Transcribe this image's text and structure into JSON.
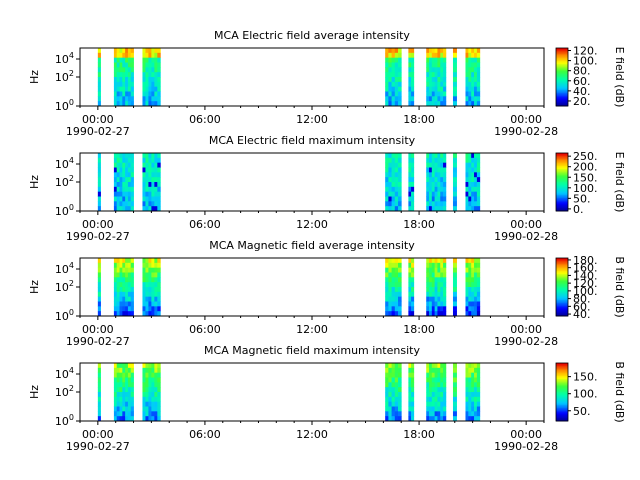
{
  "figure": {
    "background": "#ffffff"
  },
  "chart_data": [
    {
      "type": "heatmap",
      "title": "MCA  Electric field average intensity",
      "ylabel": "Hz",
      "y_scale": "log",
      "y_ticks": [
        "10^0",
        "10^2",
        "10^4"
      ],
      "x_ticks": [
        "00:00",
        "06:00",
        "12:00",
        "18:00",
        "00:00"
      ],
      "x_dates": [
        "1990-02-27",
        "",
        "",
        "",
        "1990-02-28"
      ],
      "colorbar_label": "E field (dB)",
      "colorbar_ticks": [
        "120.",
        "100.",
        "80.",
        "60.",
        "40.",
        "20."
      ],
      "colorbar_range": [
        10,
        125
      ],
      "data_intervals_hours": [
        [
          0.0,
          0.15
        ],
        [
          0.9,
          2.0
        ],
        [
          2.5,
          3.5
        ],
        [
          16.1,
          17.0
        ],
        [
          17.4,
          17.7
        ],
        [
          18.4,
          19.5
        ],
        [
          19.9,
          20.1
        ],
        [
          20.6,
          21.4
        ]
      ]
    },
    {
      "type": "heatmap",
      "title": "MCA  Electric field maximum intensity",
      "ylabel": "Hz",
      "y_scale": "log",
      "y_ticks": [
        "10^0",
        "10^2",
        "10^4"
      ],
      "x_ticks": [
        "00:00",
        "06:00",
        "12:00",
        "18:00",
        "00:00"
      ],
      "x_dates": [
        "1990-02-27",
        "",
        "",
        "",
        "1990-02-28"
      ],
      "colorbar_label": "E field (dB)",
      "colorbar_ticks": [
        "250.",
        "200.",
        "150.",
        "100.",
        "50.",
        "0."
      ],
      "colorbar_range": [
        -10,
        265
      ],
      "data_intervals_hours": [
        [
          0.0,
          0.15
        ],
        [
          0.9,
          2.0
        ],
        [
          2.5,
          3.5
        ],
        [
          16.1,
          17.0
        ],
        [
          17.4,
          17.7
        ],
        [
          18.4,
          19.5
        ],
        [
          19.9,
          20.1
        ],
        [
          20.6,
          21.4
        ]
      ]
    },
    {
      "type": "heatmap",
      "title": "MCA  Magnetic field average intensity",
      "ylabel": "Hz",
      "y_scale": "log",
      "y_ticks": [
        "10^0",
        "10^2",
        "10^4"
      ],
      "x_ticks": [
        "00:00",
        "06:00",
        "12:00",
        "18:00",
        "00:00"
      ],
      "x_dates": [
        "1990-02-27",
        "",
        "",
        "",
        "1990-02-28"
      ],
      "colorbar_label": "B field (dB)",
      "colorbar_ticks": [
        "180.",
        "160.",
        "140.",
        "120.",
        "100.",
        "80.",
        "60.",
        "40."
      ],
      "colorbar_range": [
        35,
        185
      ],
      "data_intervals_hours": [
        [
          0.0,
          0.15
        ],
        [
          0.9,
          2.0
        ],
        [
          2.5,
          3.5
        ],
        [
          16.1,
          17.0
        ],
        [
          17.4,
          17.7
        ],
        [
          18.4,
          19.5
        ],
        [
          19.9,
          20.1
        ],
        [
          20.6,
          21.4
        ]
      ]
    },
    {
      "type": "heatmap",
      "title": "MCA  Magnetic field maximum intensity",
      "ylabel": "Hz",
      "y_scale": "log",
      "y_ticks": [
        "10^0",
        "10^2",
        "10^4"
      ],
      "x_ticks": [
        "00:00",
        "06:00",
        "12:00",
        "18:00",
        "00:00"
      ],
      "x_dates": [
        "1990-02-27",
        "",
        "",
        "",
        "1990-02-28"
      ],
      "colorbar_label": "B field (dB)",
      "colorbar_ticks": [
        "150.",
        "100.",
        "50."
      ],
      "colorbar_range": [
        20,
        190
      ],
      "data_intervals_hours": [
        [
          0.0,
          0.15
        ],
        [
          0.9,
          2.0
        ],
        [
          2.5,
          3.5
        ],
        [
          16.1,
          17.0
        ],
        [
          17.4,
          17.7
        ],
        [
          18.4,
          19.5
        ],
        [
          19.9,
          20.1
        ],
        [
          20.6,
          21.4
        ]
      ]
    }
  ]
}
